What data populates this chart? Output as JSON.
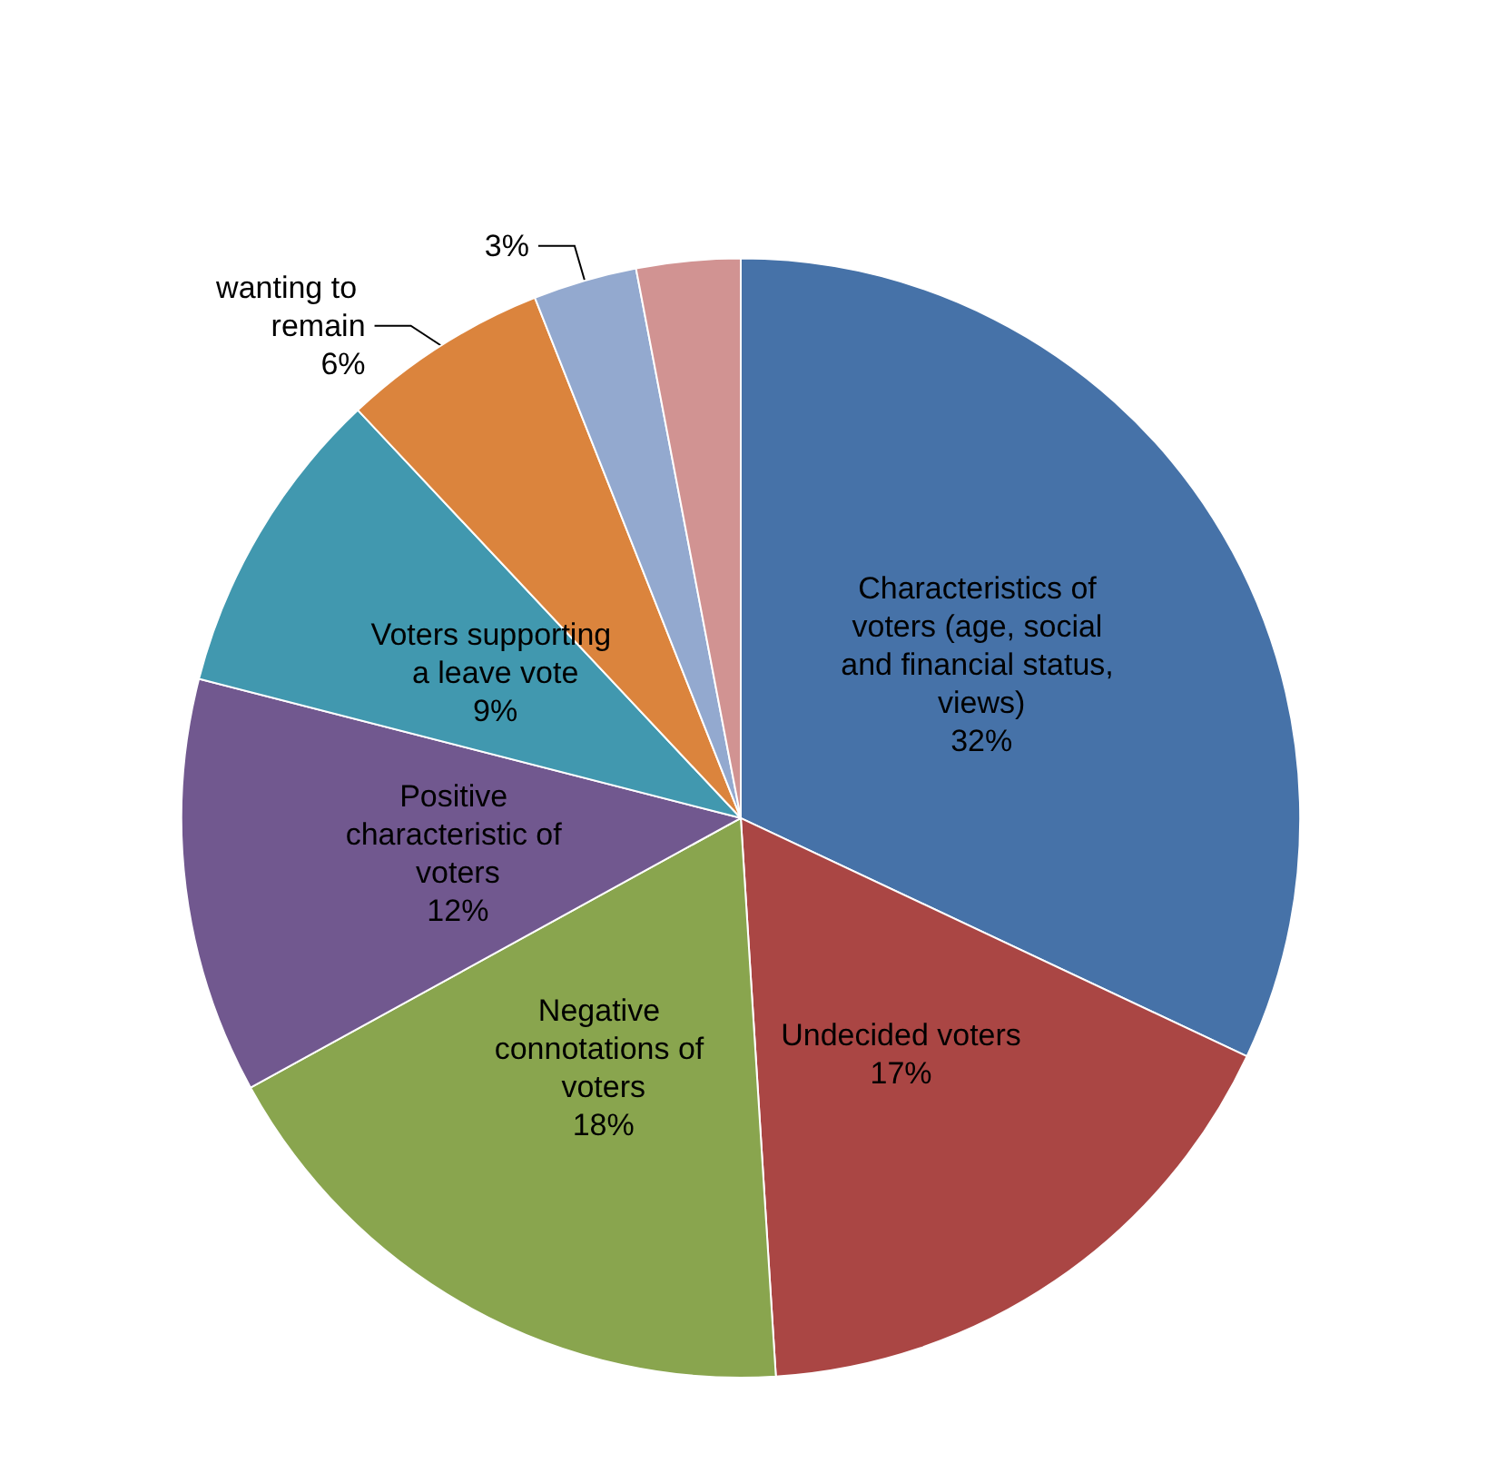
{
  "chart_data": {
    "type": "pie",
    "categories": [
      "Characteristics of voters (age, social and financial status, views)",
      "Undecided voters",
      "Negative connotations of voters",
      "Positive characteristic of voters",
      "Voters supporting a leave vote",
      "wanting to remain",
      null,
      null
    ],
    "values": [
      32,
      17,
      18,
      12,
      9,
      6,
      3,
      3
    ],
    "colors": [
      "#4672a8",
      "#aa4644",
      "#89a54e",
      "#71588f",
      "#4198af",
      "#db843d",
      "#93a9cf",
      "#d19392"
    ],
    "value_labels": [
      "32%",
      "17%",
      "18%",
      "12%",
      "9%",
      "6%",
      "3%",
      null
    ],
    "legend": false
  }
}
